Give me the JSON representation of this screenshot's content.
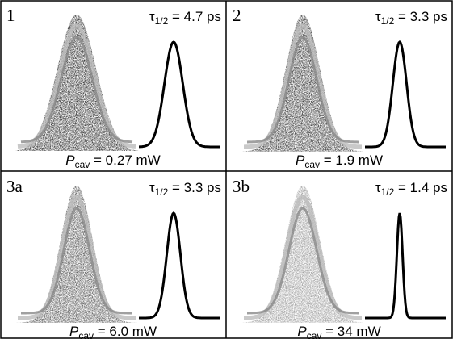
{
  "panels": [
    {
      "label": "1",
      "tau": {
        "symbol": "τ",
        "subscript": "1/2",
        "text": " = 4.7 ps"
      },
      "power": {
        "symbol": "P",
        "subscript": "cav",
        "text": " = 0.27 mW"
      }
    },
    {
      "label": "2",
      "tau": {
        "symbol": "τ",
        "subscript": "1/2",
        "text": " = 3.3 ps"
      },
      "power": {
        "symbol": "P",
        "subscript": "cav",
        "text": " = 1.9 mW"
      }
    },
    {
      "label": "3a",
      "tau": {
        "symbol": "τ",
        "subscript": "1/2",
        "text": " = 3.3 ps"
      },
      "power": {
        "symbol": "P",
        "subscript": "cav",
        "text": " = 6.0 mW"
      }
    },
    {
      "label": "3b",
      "tau": {
        "symbol": "τ",
        "subscript": "1/2",
        "text": " = 1.4 ps"
      },
      "power": {
        "symbol": "P",
        "subscript": "cav",
        "text": " = 34 mW"
      }
    }
  ]
}
